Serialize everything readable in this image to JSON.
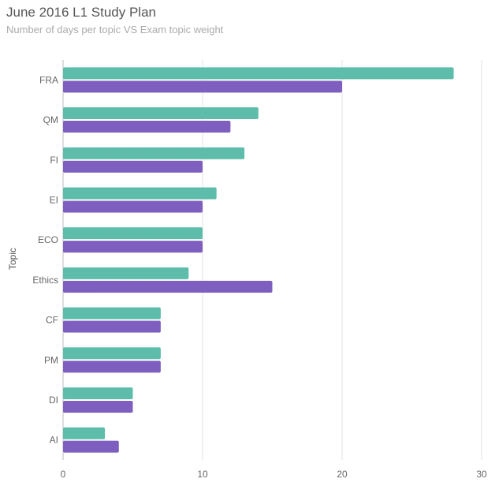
{
  "chart_data": {
    "type": "bar",
    "orientation": "horizontal",
    "title": "June 2016 L1 Study Plan",
    "subtitle": "Number of days per topic VS Exam topic weight",
    "ylabel": "Topic",
    "xlabel": "",
    "xlim": [
      0,
      30
    ],
    "xticks": [
      0,
      10,
      20,
      30
    ],
    "grid": true,
    "categories": [
      "FRA",
      "QM",
      "FI",
      "EI",
      "ECO",
      "Ethics",
      "CF",
      "PM",
      "DI",
      "AI"
    ],
    "series": [
      {
        "name": "Number of days per topic",
        "color": "#5dbdaa",
        "values": [
          28,
          14,
          13,
          11,
          10,
          9,
          7,
          7,
          5,
          3
        ]
      },
      {
        "name": "Exam topic weight",
        "color": "#7e5fbf",
        "values": [
          20,
          12,
          10,
          10,
          10,
          15,
          7,
          7,
          5,
          4
        ]
      }
    ]
  }
}
